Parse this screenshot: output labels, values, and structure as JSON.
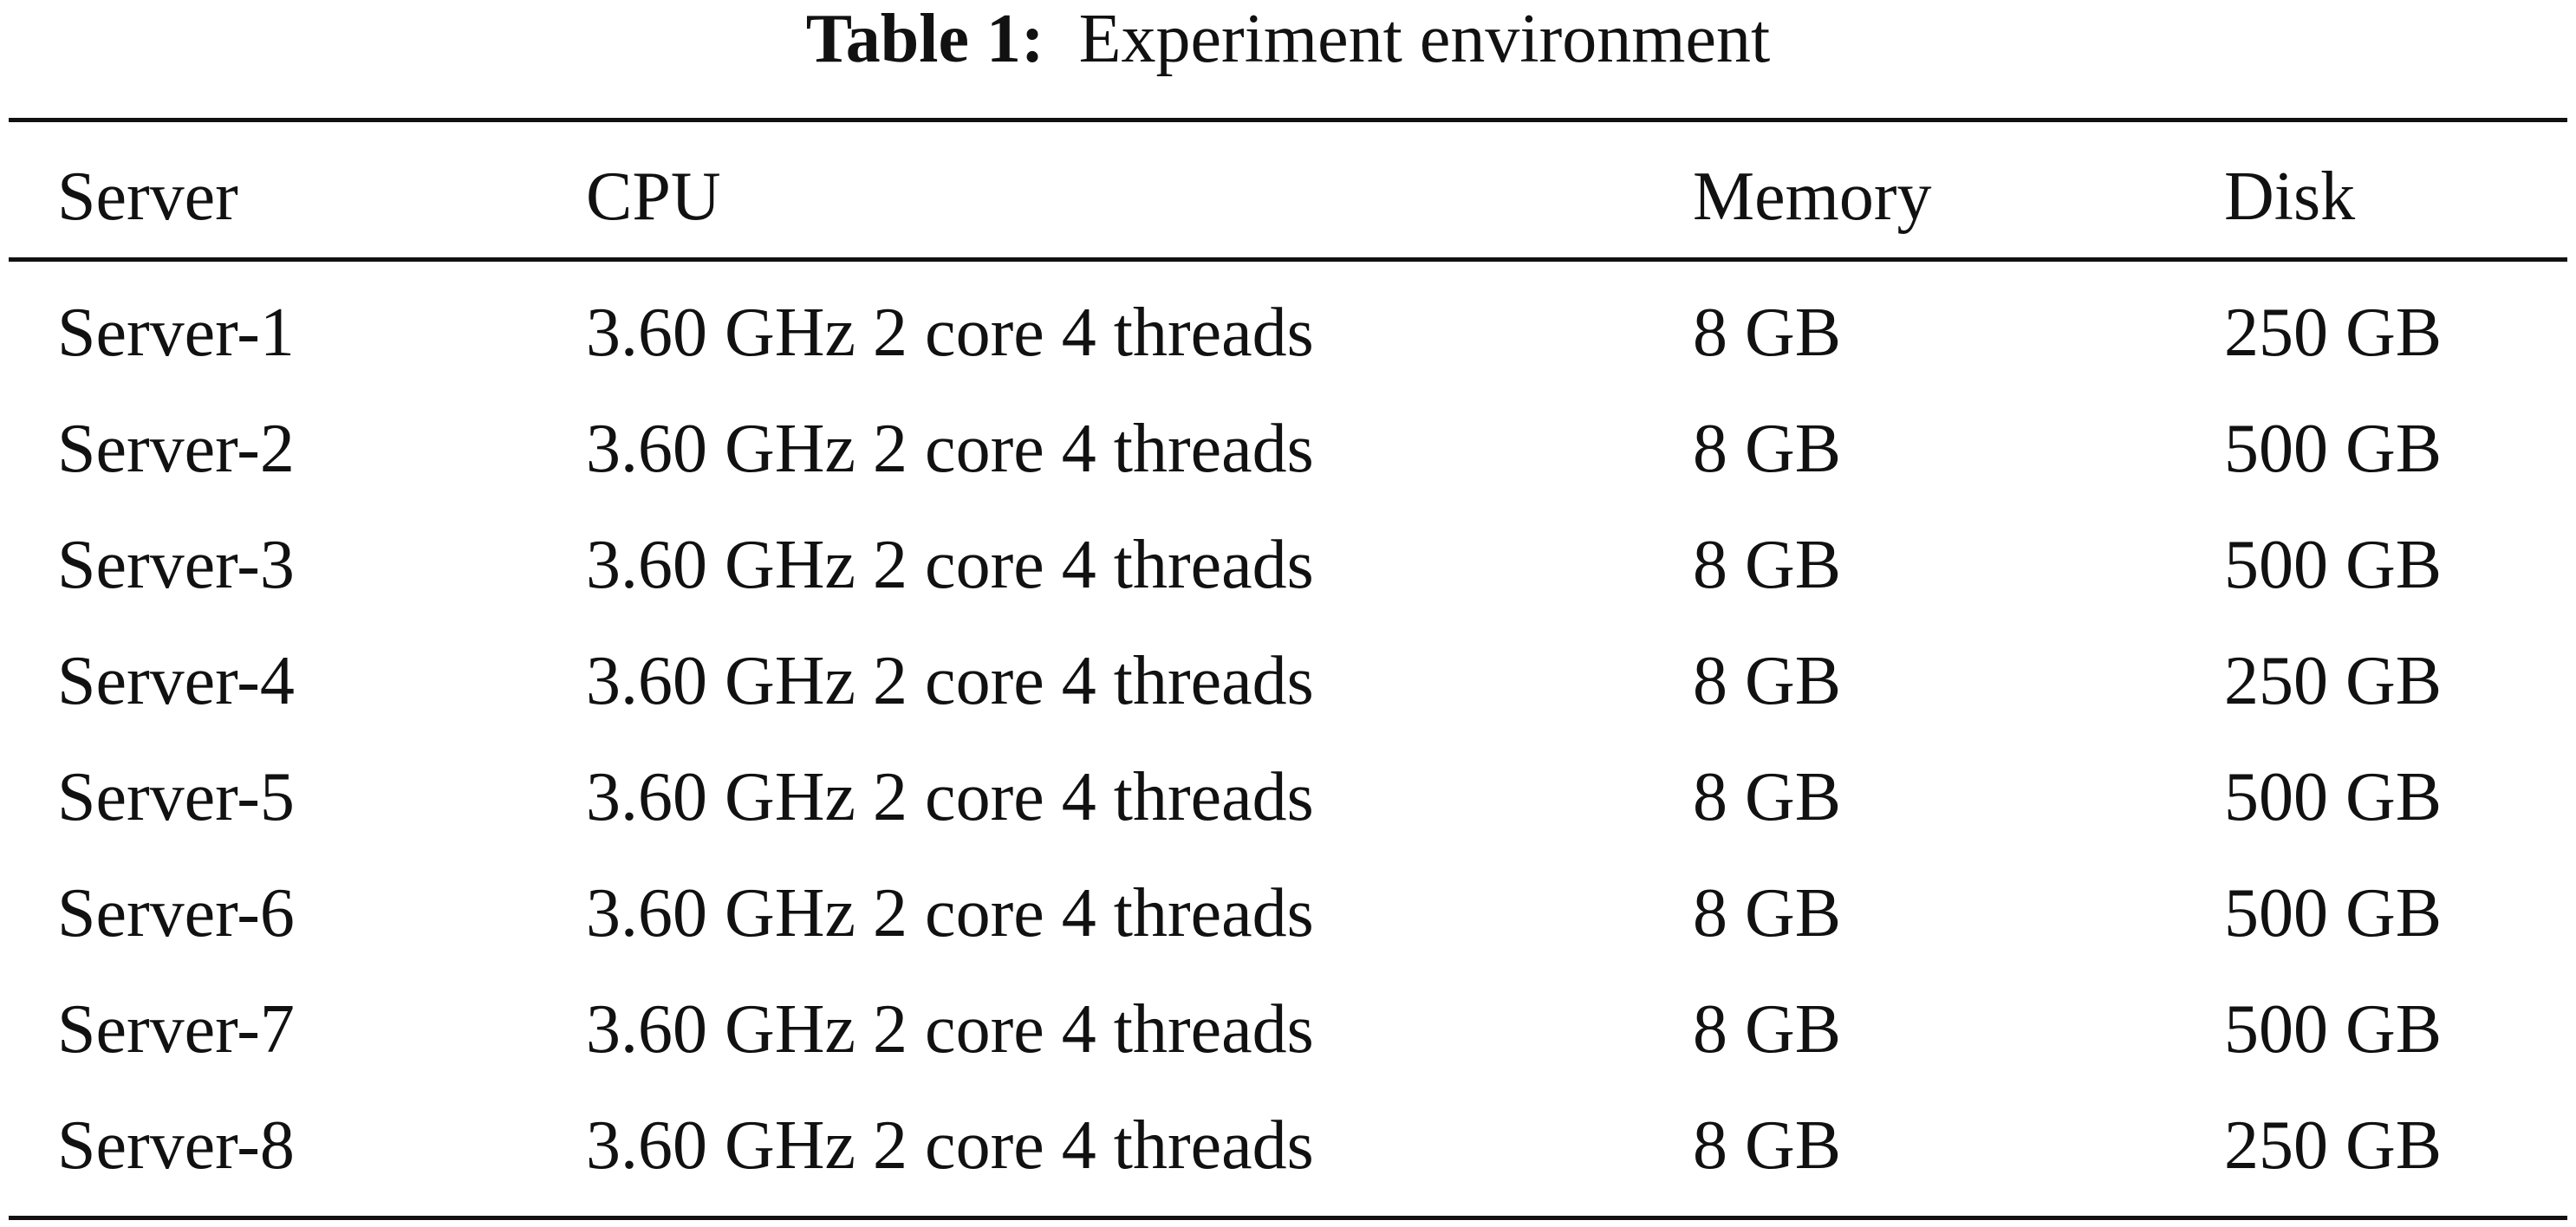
{
  "caption": {
    "label": "Table 1:",
    "title": "Experiment environment"
  },
  "table": {
    "headers": [
      "Server",
      "CPU",
      "Memory",
      "Disk"
    ],
    "rows": [
      [
        "Server-1",
        "3.60 GHz 2 core 4 threads",
        "8 GB",
        "250 GB"
      ],
      [
        "Server-2",
        "3.60 GHz 2 core 4 threads",
        "8 GB",
        "500 GB"
      ],
      [
        "Server-3",
        "3.60 GHz 2 core 4 threads",
        "8 GB",
        "500 GB"
      ],
      [
        "Server-4",
        "3.60 GHz 2 core 4 threads",
        "8 GB",
        "250 GB"
      ],
      [
        "Server-5",
        "3.60 GHz 2 core 4 threads",
        "8 GB",
        "500 GB"
      ],
      [
        "Server-6",
        "3.60 GHz 2 core 4 threads",
        "8 GB",
        "500 GB"
      ],
      [
        "Server-7",
        "3.60 GHz 2 core 4 threads",
        "8 GB",
        "500 GB"
      ],
      [
        "Server-8",
        "3.60 GHz 2 core 4 threads",
        "8 GB",
        "250 GB"
      ]
    ]
  }
}
